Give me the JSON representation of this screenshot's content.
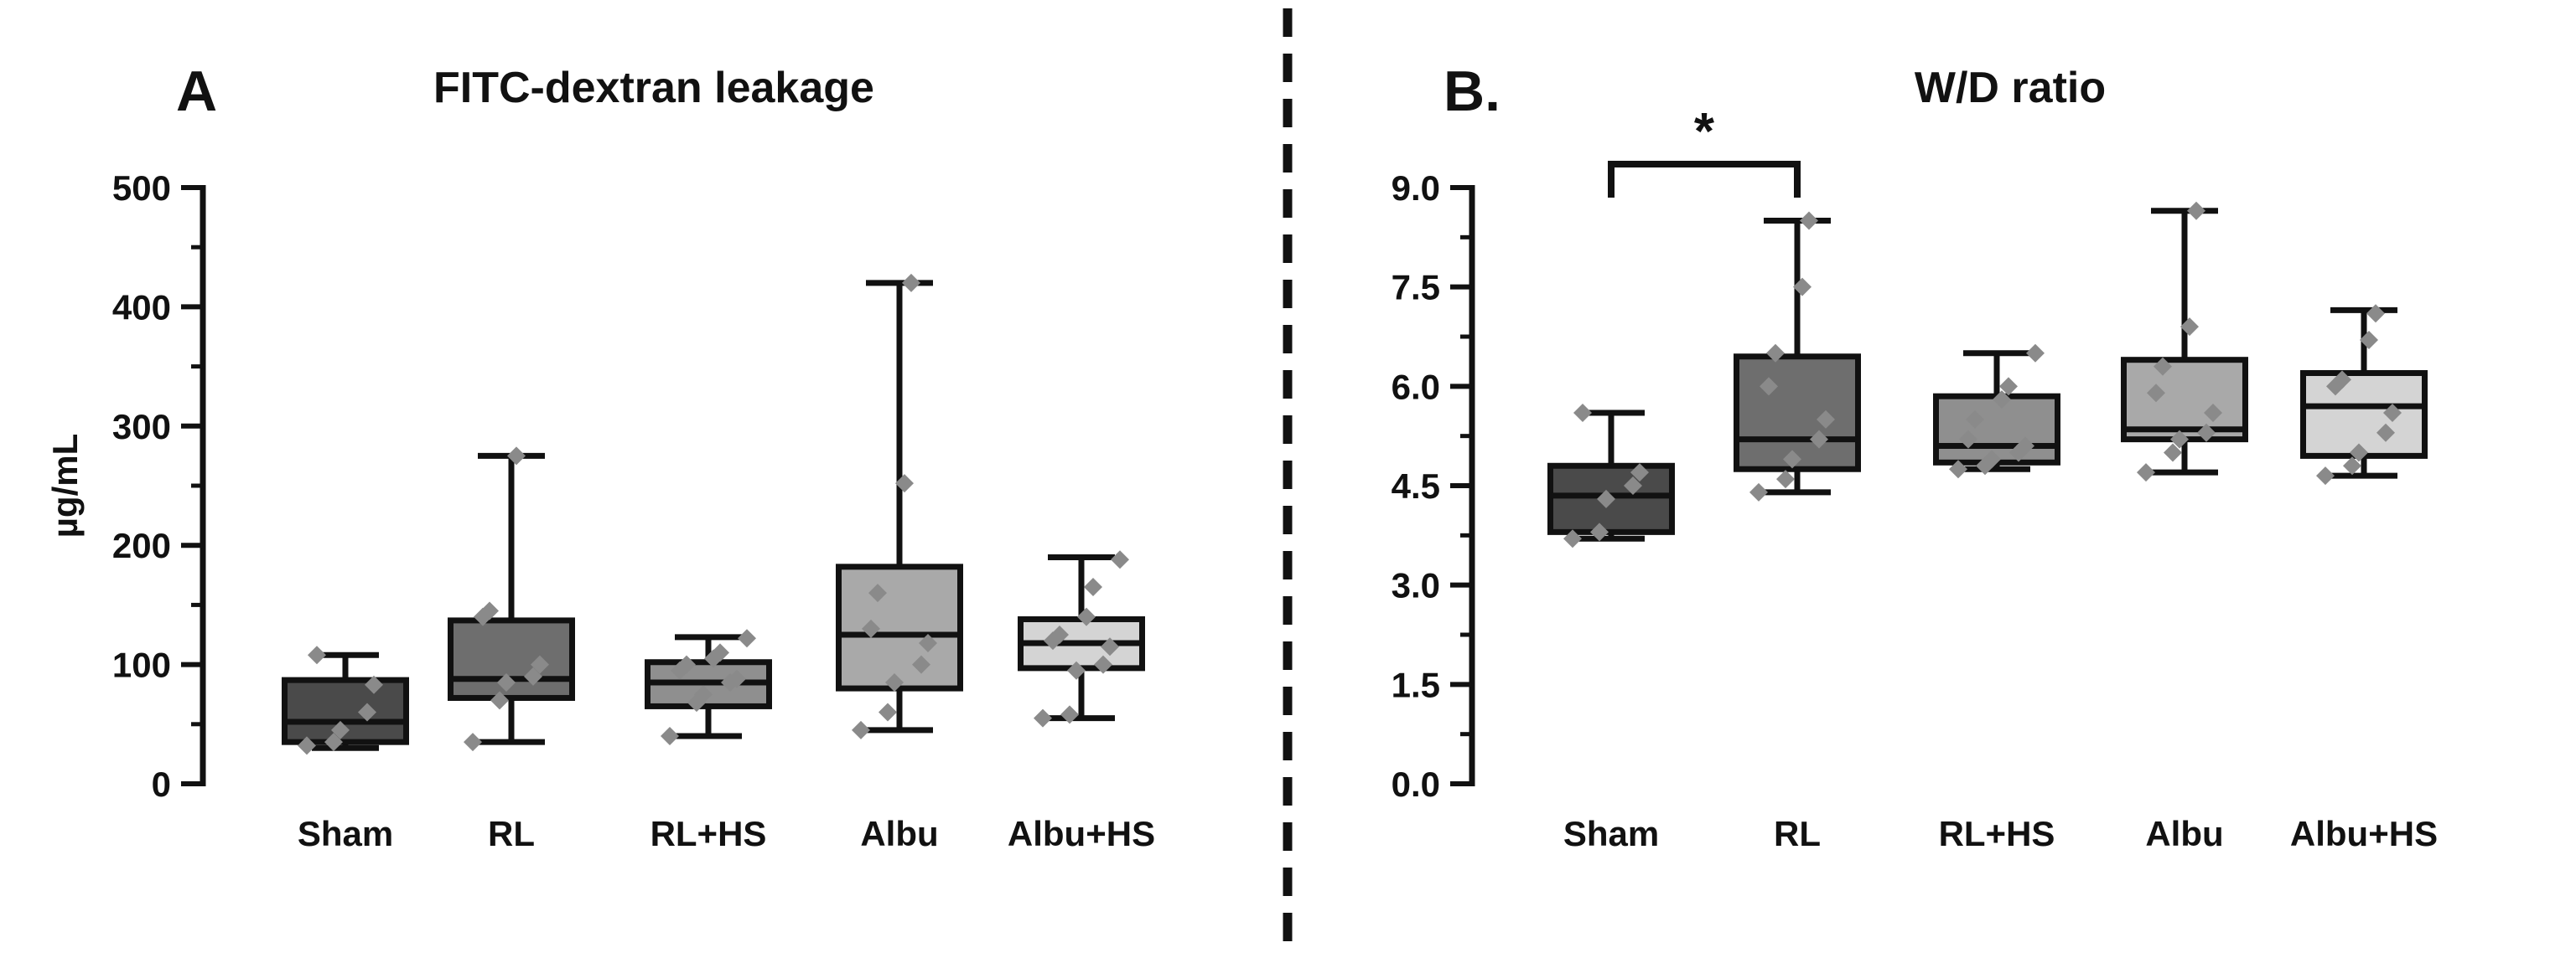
{
  "chart_data": [
    {
      "panel_label": "A",
      "title": "FITC-dextran leakage",
      "type": "box",
      "categories": [
        "Sham",
        "RL",
        "RL+HS",
        "Albu",
        "Albu+HS"
      ],
      "ylabel": "µg/mL",
      "xlabel": "",
      "ylim": [
        0,
        500
      ],
      "yticks": [
        0,
        100,
        200,
        300,
        400,
        500
      ],
      "ytick_labels": [
        "0",
        "100",
        "200",
        "300",
        "400",
        "500"
      ],
      "boxes": [
        {
          "whisker_low": 30,
          "q1": 35,
          "median": 52,
          "q3": 87,
          "whisker_high": 108,
          "points": [
            32,
            35,
            45,
            60,
            83,
            108
          ]
        },
        {
          "whisker_low": 35,
          "q1": 72,
          "median": 88,
          "q3": 137,
          "whisker_high": 275,
          "points": [
            35,
            70,
            85,
            90,
            100,
            140,
            145,
            275
          ]
        },
        {
          "whisker_low": 40,
          "q1": 65,
          "median": 85,
          "q3": 102,
          "whisker_high": 123,
          "points": [
            40,
            68,
            75,
            85,
            88,
            95,
            100,
            105,
            110,
            122
          ]
        },
        {
          "whisker_low": 45,
          "q1": 80,
          "median": 125,
          "q3": 182,
          "whisker_high": 420,
          "points": [
            45,
            60,
            85,
            100,
            118,
            130,
            160,
            252,
            420
          ]
        },
        {
          "whisker_low": 55,
          "q1": 97,
          "median": 118,
          "q3": 138,
          "whisker_high": 190,
          "points": [
            55,
            58,
            95,
            100,
            115,
            120,
            125,
            140,
            165,
            188
          ]
        }
      ],
      "grid": false,
      "legend": "none"
    },
    {
      "panel_label": "B.",
      "title": "W/D ratio",
      "type": "box",
      "categories": [
        "Sham",
        "RL",
        "RL+HS",
        "Albu",
        "Albu+HS"
      ],
      "ylabel": "",
      "xlabel": "",
      "ylim": [
        0,
        9
      ],
      "yticks": [
        0,
        1.5,
        3,
        4.5,
        6,
        7.5,
        9
      ],
      "ytick_labels": [
        "0.0",
        "1.5",
        "3.0",
        "4.5",
        "6.0",
        "7.5",
        "9.0"
      ],
      "boxes": [
        {
          "whisker_low": 3.7,
          "q1": 3.8,
          "median": 4.35,
          "q3": 4.8,
          "whisker_high": 5.6,
          "points": [
            3.7,
            3.8,
            4.3,
            4.5,
            4.7,
            5.6
          ]
        },
        {
          "whisker_low": 4.4,
          "q1": 4.75,
          "median": 5.2,
          "q3": 6.45,
          "whisker_high": 8.5,
          "points": [
            4.4,
            4.6,
            4.9,
            5.2,
            5.5,
            6.0,
            6.5,
            7.5,
            8.5
          ]
        },
        {
          "whisker_low": 4.75,
          "q1": 4.85,
          "median": 5.1,
          "q3": 5.85,
          "whisker_high": 6.5,
          "points": [
            4.75,
            4.8,
            4.9,
            5.0,
            5.1,
            5.2,
            5.5,
            5.8,
            6.0,
            6.5
          ]
        },
        {
          "whisker_low": 4.7,
          "q1": 5.2,
          "median": 5.35,
          "q3": 6.4,
          "whisker_high": 8.65,
          "points": [
            4.7,
            5.0,
            5.2,
            5.3,
            5.6,
            5.9,
            6.3,
            6.9,
            8.65
          ]
        },
        {
          "whisker_low": 4.65,
          "q1": 4.95,
          "median": 5.7,
          "q3": 6.2,
          "whisker_high": 7.15,
          "points": [
            4.65,
            4.8,
            5.0,
            5.3,
            5.6,
            6.0,
            6.1,
            6.7,
            7.1
          ]
        }
      ],
      "annotations": [
        {
          "text": "*",
          "from": "Sham",
          "to": "RL"
        }
      ],
      "grid": false,
      "legend": "none"
    }
  ],
  "colors": {
    "box_fills": [
      "#4a4a4a",
      "#6e6e6e",
      "#8f8f8f",
      "#a9a9a9",
      "#d4d4d4"
    ],
    "points": "#8a8a8a",
    "lines": "#111111"
  }
}
